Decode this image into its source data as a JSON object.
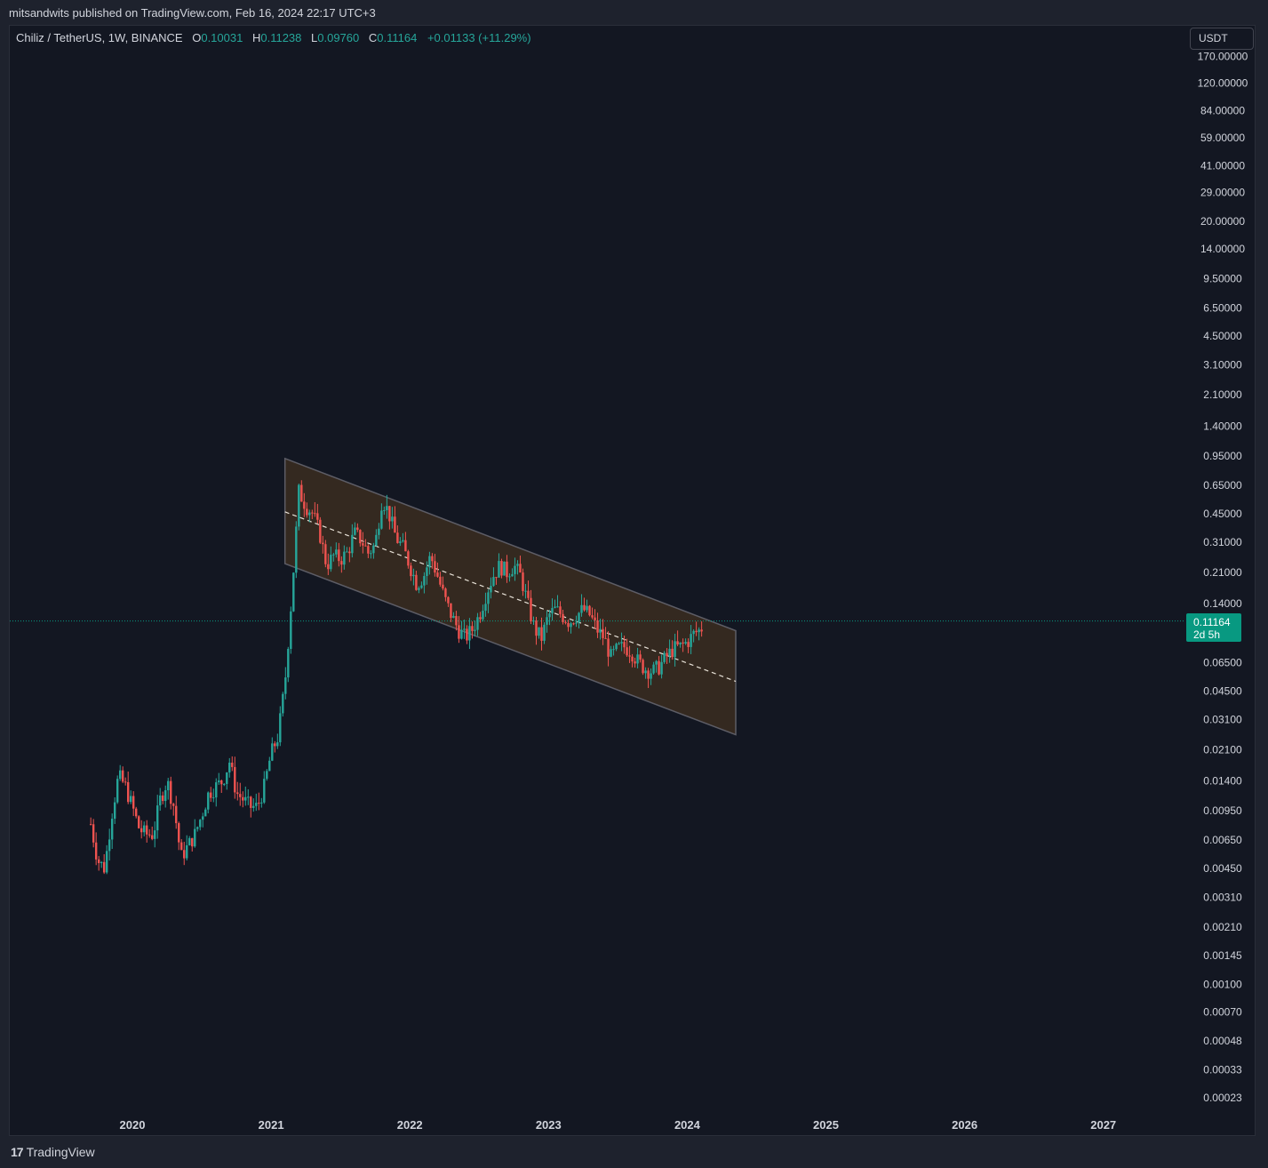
{
  "header": {
    "publisher_line": "mitsandwits published on TradingView.com, Feb 16, 2024 22:17 UTC+3"
  },
  "legend": {
    "symbol": "Chiliz / TetherUS, 1W, BINANCE",
    "open_key": "O",
    "open": "0.10031",
    "high_key": "H",
    "high": "0.11238",
    "low_key": "L",
    "low": "0.09760",
    "close_key": "C",
    "close": "0.11164",
    "change": "+0.01133 (+11.29%)"
  },
  "currency_button": "USDT",
  "last_price": {
    "value": "0.11164",
    "countdown": "2d 5h"
  },
  "footer": {
    "brand": "TradingView",
    "logo_glyph": "17"
  },
  "colors": {
    "background": "#131722",
    "up": "#26a69a",
    "down": "#ef5350",
    "channel_fill": "#3b2d20",
    "price_label": "#089981"
  },
  "chart_data": {
    "type": "candlestick",
    "scale": "log",
    "interval": "1W",
    "y_ticks": [
      "170.00000",
      "120.00000",
      "84.00000",
      "59.00000",
      "41.00000",
      "29.00000",
      "20.00000",
      "14.00000",
      "9.50000",
      "6.50000",
      "4.50000",
      "3.10000",
      "2.10000",
      "1.40000",
      "0.95000",
      "0.65000",
      "0.45000",
      "0.31000",
      "0.21000",
      "0.14000",
      "0.06500",
      "0.04500",
      "0.03100",
      "0.02100",
      "0.01400",
      "0.00950",
      "0.00650",
      "0.00450",
      "0.00310",
      "0.00210",
      "0.00145",
      "0.00100",
      "0.00070",
      "0.00048",
      "0.00033",
      "0.00023"
    ],
    "x_ticks": [
      "2020",
      "2021",
      "2022",
      "2023",
      "2024",
      "2025",
      "2026",
      "2027"
    ],
    "ylim": [
      0.0002,
      200
    ],
    "xlim": [
      2019.35,
      2027.75
    ],
    "price_series": {
      "name": "CHZUSDT",
      "points": [
        [
          2019.7,
          0.008
        ],
        [
          2019.75,
          0.005
        ],
        [
          2019.8,
          0.0045
        ],
        [
          2019.85,
          0.009
        ],
        [
          2019.9,
          0.015
        ],
        [
          2019.95,
          0.013
        ],
        [
          2020.0,
          0.01
        ],
        [
          2020.05,
          0.0075
        ],
        [
          2020.1,
          0.007
        ],
        [
          2020.15,
          0.007
        ],
        [
          2020.2,
          0.011
        ],
        [
          2020.25,
          0.014
        ],
        [
          2020.3,
          0.01
        ],
        [
          2020.35,
          0.0052
        ],
        [
          2020.4,
          0.006
        ],
        [
          2020.45,
          0.007
        ],
        [
          2020.5,
          0.009
        ],
        [
          2020.55,
          0.012
        ],
        [
          2020.6,
          0.013
        ],
        [
          2020.65,
          0.014
        ],
        [
          2020.7,
          0.018
        ],
        [
          2020.75,
          0.012
        ],
        [
          2020.8,
          0.011
        ],
        [
          2020.85,
          0.01
        ],
        [
          2020.9,
          0.01
        ],
        [
          2020.95,
          0.013
        ],
        [
          2021.0,
          0.02
        ],
        [
          2021.05,
          0.025
        ],
        [
          2021.1,
          0.05
        ],
        [
          2021.15,
          0.16
        ],
        [
          2021.2,
          0.6
        ],
        [
          2021.25,
          0.5
        ],
        [
          2021.3,
          0.45
        ],
        [
          2021.35,
          0.35
        ],
        [
          2021.4,
          0.23
        ],
        [
          2021.45,
          0.26
        ],
        [
          2021.5,
          0.25
        ],
        [
          2021.55,
          0.27
        ],
        [
          2021.6,
          0.35
        ],
        [
          2021.65,
          0.32
        ],
        [
          2021.7,
          0.27
        ],
        [
          2021.75,
          0.3
        ],
        [
          2021.8,
          0.55
        ],
        [
          2021.85,
          0.45
        ],
        [
          2021.9,
          0.33
        ],
        [
          2021.95,
          0.29
        ],
        [
          2022.0,
          0.23
        ],
        [
          2022.05,
          0.18
        ],
        [
          2022.1,
          0.2
        ],
        [
          2022.15,
          0.26
        ],
        [
          2022.2,
          0.2
        ],
        [
          2022.25,
          0.15
        ],
        [
          2022.3,
          0.12
        ],
        [
          2022.35,
          0.1
        ],
        [
          2022.4,
          0.09
        ],
        [
          2022.45,
          0.1
        ],
        [
          2022.5,
          0.12
        ],
        [
          2022.55,
          0.16
        ],
        [
          2022.6,
          0.2
        ],
        [
          2022.65,
          0.23
        ],
        [
          2022.7,
          0.21
        ],
        [
          2022.75,
          0.23
        ],
        [
          2022.8,
          0.2
        ],
        [
          2022.85,
          0.14
        ],
        [
          2022.9,
          0.1
        ],
        [
          2022.95,
          0.09
        ],
        [
          2023.0,
          0.12
        ],
        [
          2023.05,
          0.13
        ],
        [
          2023.1,
          0.12
        ],
        [
          2023.15,
          0.11
        ],
        [
          2023.2,
          0.12
        ],
        [
          2023.25,
          0.13
        ],
        [
          2023.3,
          0.12
        ],
        [
          2023.35,
          0.1
        ],
        [
          2023.4,
          0.09
        ],
        [
          2023.45,
          0.07
        ],
        [
          2023.5,
          0.078
        ],
        [
          2023.55,
          0.08
        ],
        [
          2023.6,
          0.075
        ],
        [
          2023.65,
          0.065
        ],
        [
          2023.7,
          0.06
        ],
        [
          2023.75,
          0.058
        ],
        [
          2023.8,
          0.062
        ],
        [
          2023.85,
          0.07
        ],
        [
          2023.9,
          0.078
        ],
        [
          2023.95,
          0.08
        ],
        [
          2024.0,
          0.085
        ],
        [
          2024.05,
          0.095
        ],
        [
          2024.1,
          0.1
        ],
        [
          2024.12,
          0.1116
        ]
      ]
    },
    "channel": {
      "upper_start": [
        2021.1,
        0.92
      ],
      "upper_end": [
        2024.35,
        0.0985
      ],
      "lower_start": [
        2021.1,
        0.235
      ],
      "lower_end": [
        2024.35,
        0.0255
      ],
      "median_start": [
        2021.1,
        0.46
      ],
      "median_end": [
        2024.35,
        0.051
      ]
    },
    "last_price_line": 0.11164
  }
}
